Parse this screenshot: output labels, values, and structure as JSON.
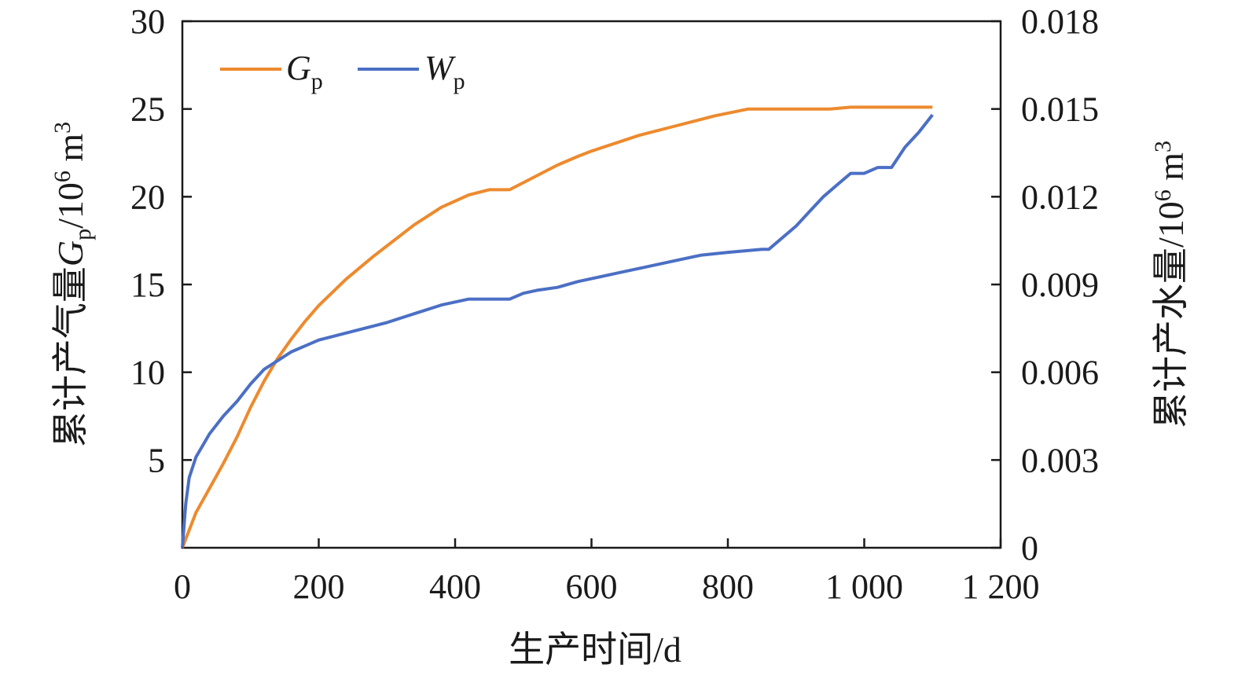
{
  "chart_data": {
    "type": "line",
    "xlabel": "生产时间/d",
    "ylabel_left": {
      "main": "累计产气量",
      "symbol": "G",
      "subscript": "p",
      "unit": "/10",
      "unit_exp": "6",
      "unit_tail": " m",
      "unit_tail_exp": "3"
    },
    "ylabel_right": {
      "main": "累计产水量",
      "unit": "/10",
      "unit_exp": "6",
      "unit_tail": " m",
      "unit_tail_exp": "3"
    },
    "xlim": [
      0,
      1200
    ],
    "ylim_left": [
      0,
      30
    ],
    "ylim_right": [
      0,
      0.018
    ],
    "x_ticks": [
      {
        "value": 0,
        "label": "0"
      },
      {
        "value": 200,
        "label": "200"
      },
      {
        "value": 400,
        "label": "400"
      },
      {
        "value": 600,
        "label": "600"
      },
      {
        "value": 800,
        "label": "800"
      },
      {
        "value": 1000,
        "label": "1 000"
      },
      {
        "value": 1200,
        "label": "1 200"
      }
    ],
    "y_left_ticks": [
      {
        "value": 5,
        "label": "5"
      },
      {
        "value": 10,
        "label": "10"
      },
      {
        "value": 15,
        "label": "15"
      },
      {
        "value": 20,
        "label": "20"
      },
      {
        "value": 25,
        "label": "25"
      },
      {
        "value": 30,
        "label": "30"
      }
    ],
    "y_right_ticks": [
      {
        "value": 0,
        "label": "0"
      },
      {
        "value": 0.003,
        "label": "0.003"
      },
      {
        "value": 0.006,
        "label": "0.006"
      },
      {
        "value": 0.009,
        "label": "0.009"
      },
      {
        "value": 0.012,
        "label": "0.012"
      },
      {
        "value": 0.015,
        "label": "0.015"
      },
      {
        "value": 0.018,
        "label": "0.018"
      }
    ],
    "legend_position": "top-left",
    "series": [
      {
        "name": "G",
        "name_sub": "p",
        "axis": "left",
        "color": "#ed8a2e",
        "x": [
          0,
          20,
          40,
          60,
          80,
          100,
          120,
          140,
          160,
          180,
          200,
          240,
          280,
          320,
          340,
          380,
          420,
          450,
          480,
          520,
          550,
          580,
          600,
          670,
          720,
          780,
          830,
          860,
          950,
          980,
          1040,
          1100
        ],
        "y": [
          0,
          2.0,
          3.4,
          4.8,
          6.3,
          8.0,
          9.5,
          10.8,
          11.9,
          12.9,
          13.8,
          15.3,
          16.6,
          17.8,
          18.4,
          19.4,
          20.1,
          20.4,
          20.4,
          21.2,
          21.8,
          22.3,
          22.6,
          23.5,
          24.0,
          24.6,
          25.0,
          25.0,
          25.0,
          25.1,
          25.1,
          25.1
        ]
      },
      {
        "name": "W",
        "name_sub": "p",
        "axis": "right",
        "color": "#4b6fc4",
        "x": [
          0,
          5,
          10,
          20,
          30,
          40,
          60,
          80,
          100,
          120,
          140,
          160,
          180,
          200,
          250,
          300,
          340,
          380,
          420,
          450,
          480,
          500,
          520,
          550,
          580,
          600,
          640,
          680,
          720,
          760,
          800,
          850,
          860,
          900,
          920,
          940,
          960,
          980,
          1000,
          1020,
          1040,
          1060,
          1080,
          1100
        ],
        "y": [
          0,
          0.0015,
          0.0024,
          0.0031,
          0.0035,
          0.0039,
          0.0045,
          0.005,
          0.0056,
          0.0061,
          0.0064,
          0.0067,
          0.0069,
          0.0071,
          0.0074,
          0.0077,
          0.008,
          0.0083,
          0.0085,
          0.0085,
          0.0085,
          0.0087,
          0.0088,
          0.0089,
          0.0091,
          0.0092,
          0.0094,
          0.0096,
          0.0098,
          0.01,
          0.0101,
          0.0102,
          0.0102,
          0.011,
          0.0115,
          0.012,
          0.0124,
          0.0128,
          0.0128,
          0.013,
          0.013,
          0.0137,
          0.0142,
          0.0148
        ]
      }
    ]
  }
}
